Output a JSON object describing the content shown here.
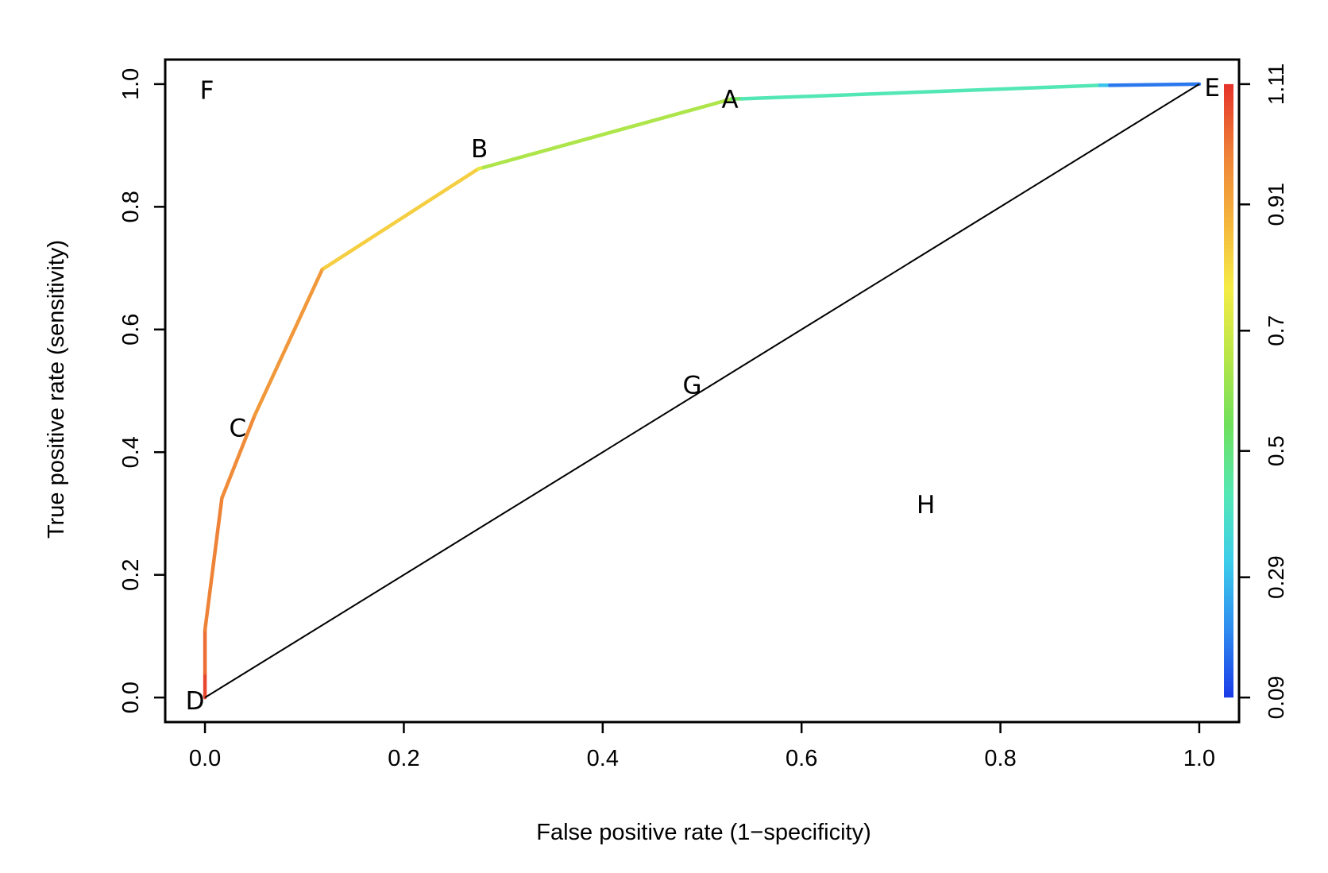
{
  "chart_data": {
    "type": "line",
    "title": "",
    "xlabel": "False positive rate (1−specificity)",
    "ylabel": "True positive rate (sensitivity)",
    "xlim": [
      -0.04,
      1.04
    ],
    "ylim": [
      -0.04,
      1.04
    ],
    "x_ticks": [
      0.0,
      0.2,
      0.4,
      0.6,
      0.8,
      1.0
    ],
    "x_tick_labels": [
      "0.0",
      "0.2",
      "0.4",
      "0.6",
      "0.8",
      "1.0"
    ],
    "y_ticks": [
      0.0,
      0.2,
      0.4,
      0.6,
      0.8,
      1.0
    ],
    "y_tick_labels": [
      "0.0",
      "0.2",
      "0.4",
      "0.6",
      "0.8",
      "1.0"
    ],
    "grid": false,
    "series": [
      {
        "kind": "roc-curve",
        "colored_by": "cutoff",
        "points": [
          {
            "x": 0.0,
            "y": 0.0,
            "c": 1.11
          },
          {
            "x": 0.0,
            "y": 0.04,
            "c": 1.05
          },
          {
            "x": 0.0,
            "y": 0.11,
            "c": 1.0
          },
          {
            "x": 0.017,
            "y": 0.325,
            "c": 0.98
          },
          {
            "x": 0.05,
            "y": 0.46,
            "c": 0.96
          },
          {
            "x": 0.118,
            "y": 0.698,
            "c": 0.93
          },
          {
            "x": 0.12,
            "y": 0.7,
            "c": 0.86
          },
          {
            "x": 0.275,
            "y": 0.862,
            "c": 0.8
          },
          {
            "x": 0.28,
            "y": 0.864,
            "c": 0.68
          },
          {
            "x": 0.53,
            "y": 0.976,
            "c": 0.6
          },
          {
            "x": 0.54,
            "y": 0.976,
            "c": 0.45
          },
          {
            "x": 0.9,
            "y": 0.998,
            "c": 0.4
          },
          {
            "x": 0.91,
            "y": 0.998,
            "c": 0.2
          },
          {
            "x": 1.0,
            "y": 1.0,
            "c": 0.15
          }
        ]
      },
      {
        "kind": "diagonal",
        "color": "#000000",
        "points": [
          {
            "x": 0.0,
            "y": 0.0
          },
          {
            "x": 1.0,
            "y": 1.0
          }
        ]
      }
    ],
    "annotations": [
      {
        "text": "A",
        "x": 0.528,
        "y": 0.975
      },
      {
        "text": "B",
        "x": 0.276,
        "y": 0.895
      },
      {
        "text": "C",
        "x": 0.033,
        "y": 0.44
      },
      {
        "text": "D",
        "x": -0.01,
        "y": -0.005
      },
      {
        "text": "E",
        "x": 1.013,
        "y": 0.995
      },
      {
        "text": "F",
        "x": 0.002,
        "y": 0.99
      },
      {
        "text": "G",
        "x": 0.49,
        "y": 0.51
      },
      {
        "text": "H",
        "x": 0.725,
        "y": 0.315
      }
    ],
    "colorbar": {
      "range": [
        0.09,
        1.11
      ],
      "tick_values": [
        0.09,
        0.29,
        0.5,
        0.7,
        0.91,
        1.11
      ],
      "tick_labels": [
        "0.09",
        "0.29",
        "0.5",
        "0.7",
        "0.91",
        "1.11"
      ],
      "colors": [
        "#1a3be8",
        "#2f8cf0",
        "#3ccdea",
        "#55e8b4",
        "#6fe05c",
        "#b8e648",
        "#f5ec46",
        "#f5b43c",
        "#ee8038",
        "#e6322a"
      ]
    }
  }
}
